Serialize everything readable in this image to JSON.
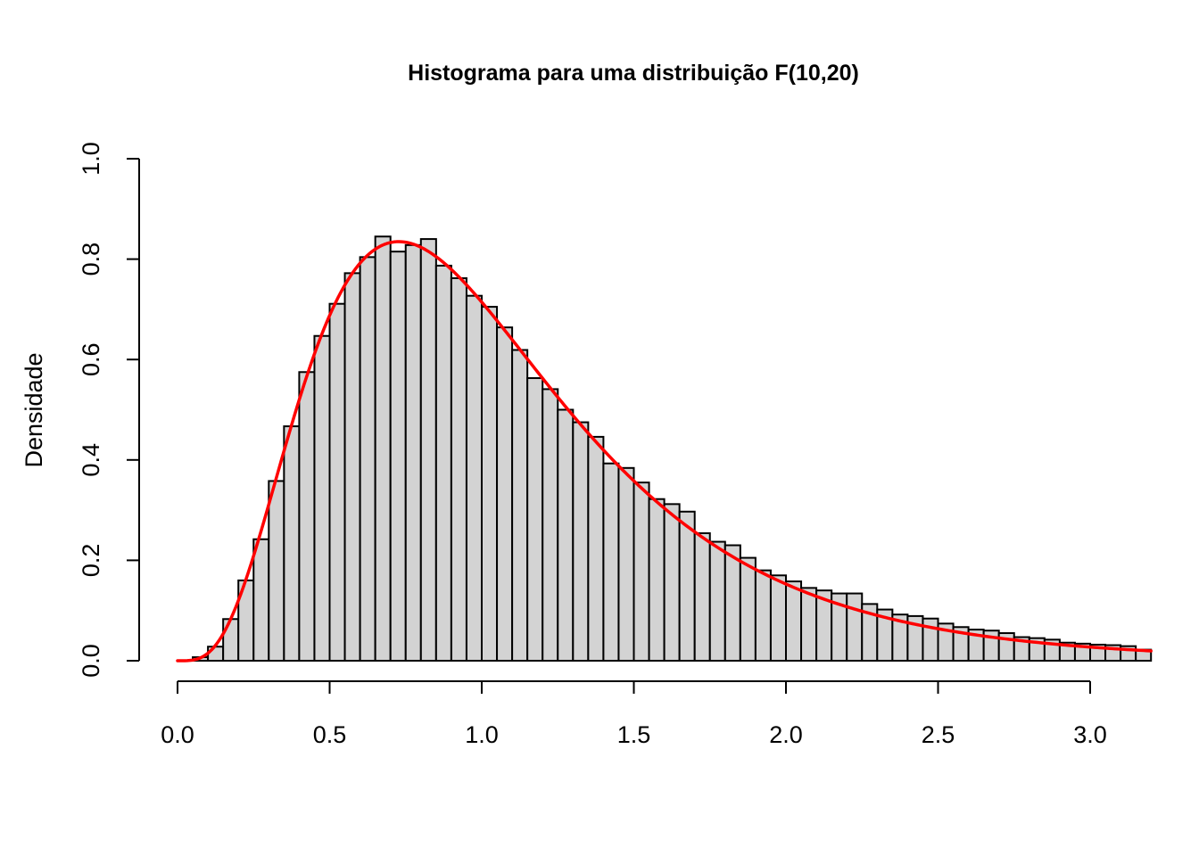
{
  "chart_data": {
    "type": "bar",
    "title": "Histograma para uma distribuição F(10,20)",
    "xlabel": "",
    "ylabel": "Densidade",
    "xlim": [
      0,
      3.1
    ],
    "ylim": [
      0,
      1.0
    ],
    "x_ticks": [
      0.0,
      0.5,
      1.0,
      1.5,
      2.0,
      2.5,
      3.0
    ],
    "x_tick_labels": [
      "0.0",
      "0.5",
      "1.0",
      "1.5",
      "2.0",
      "2.5",
      "3.0"
    ],
    "y_ticks": [
      0.0,
      0.2,
      0.4,
      0.6,
      0.8,
      1.0
    ],
    "y_tick_labels": [
      "0.0",
      "0.2",
      "0.4",
      "0.6",
      "0.8",
      "1.0"
    ],
    "grid": false,
    "legend": "none",
    "bin_width": 0.05,
    "bin_start": 0.0,
    "values": [
      0.0,
      0.007,
      0.028,
      0.083,
      0.16,
      0.242,
      0.358,
      0.467,
      0.575,
      0.647,
      0.711,
      0.772,
      0.804,
      0.845,
      0.815,
      0.828,
      0.84,
      0.787,
      0.762,
      0.727,
      0.705,
      0.664,
      0.619,
      0.563,
      0.541,
      0.5,
      0.475,
      0.446,
      0.393,
      0.384,
      0.355,
      0.322,
      0.312,
      0.297,
      0.254,
      0.237,
      0.23,
      0.205,
      0.18,
      0.17,
      0.158,
      0.145,
      0.14,
      0.134,
      0.134,
      0.113,
      0.102,
      0.092,
      0.089,
      0.084,
      0.074,
      0.067,
      0.062,
      0.06,
      0.055,
      0.047,
      0.045,
      0.042,
      0.036,
      0.034,
      0.032,
      0.031,
      0.029,
      0.022
    ],
    "density_curve": {
      "distribution": "F",
      "df1": 10,
      "df2": 20,
      "color": "#ff0000"
    },
    "bar_fill": "#d3d3d3",
    "bar_stroke": "#000000"
  }
}
